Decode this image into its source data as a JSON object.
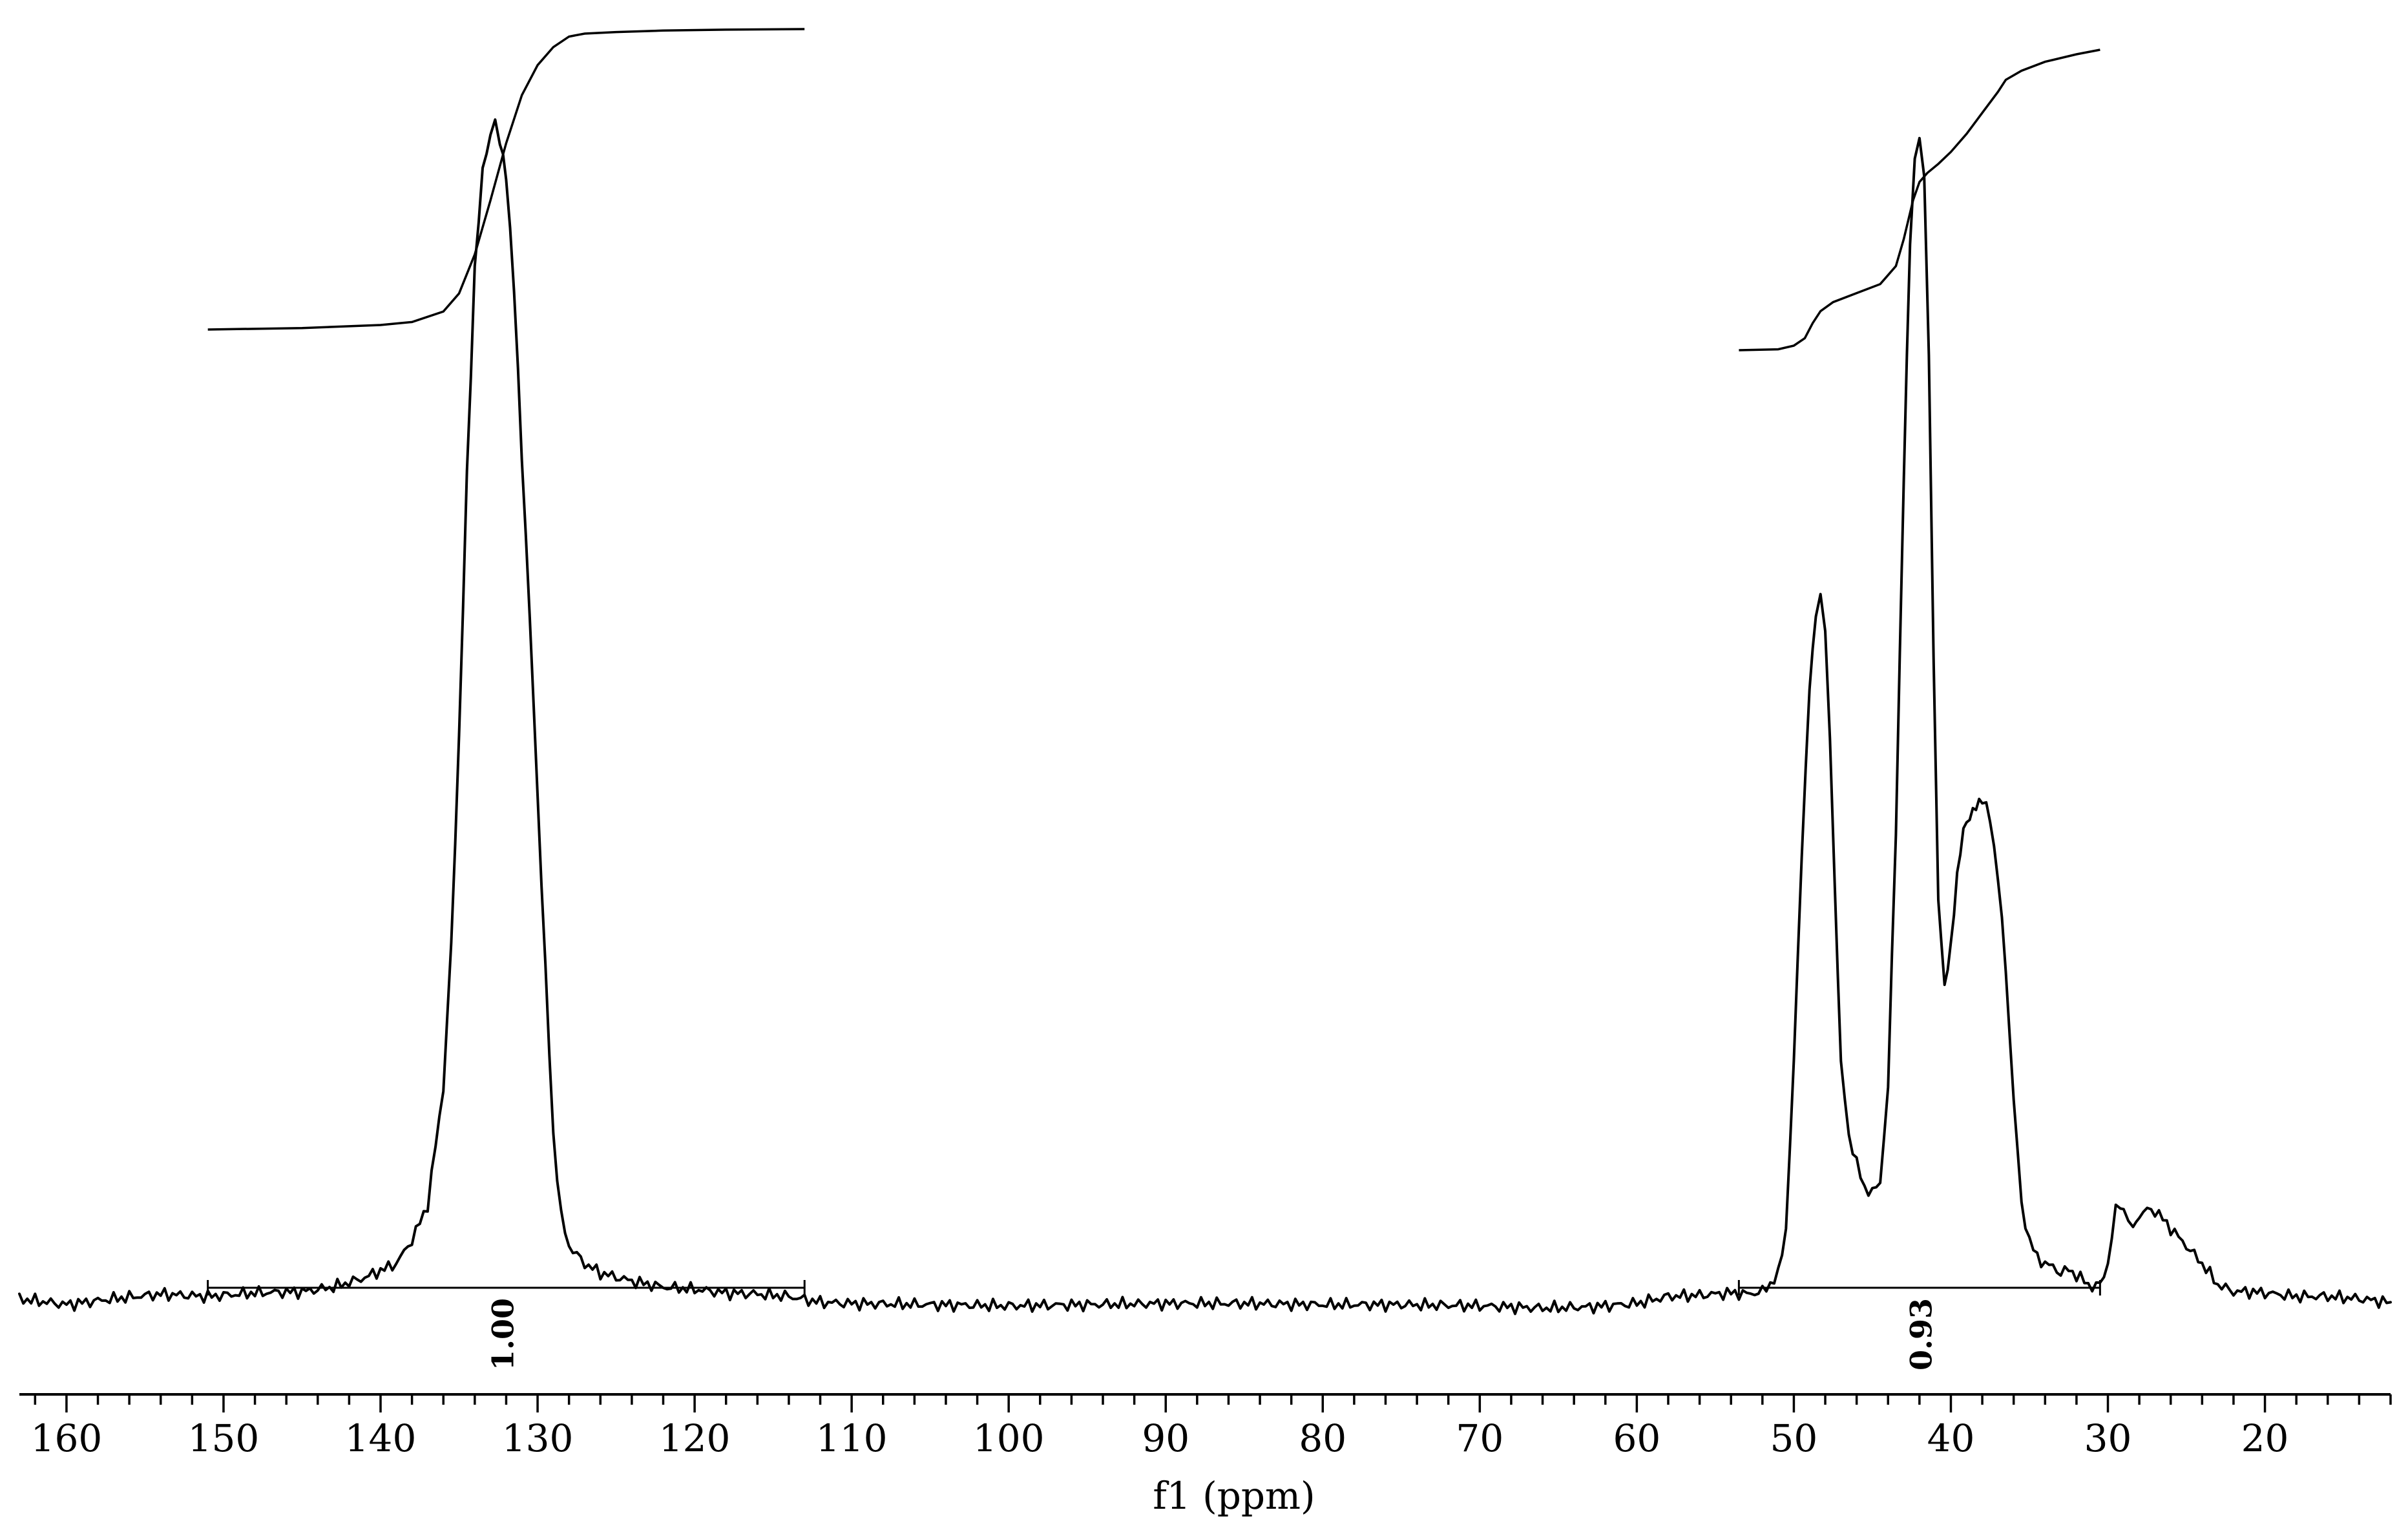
{
  "chart_data": {
    "type": "line",
    "title": "",
    "xlabel": "f1 (ppm)",
    "ylabel": "",
    "x_reversed": true,
    "xlim": [
      163,
      12
    ],
    "ylim": [
      -0.03,
      1.0
    ],
    "grid": false,
    "xticks_major": [
      160,
      150,
      140,
      130,
      120,
      110,
      100,
      90,
      80,
      70,
      60,
      50,
      40,
      30,
      20
    ],
    "xticks_minor_step": 2,
    "series": [
      {
        "x": [
          163,
          160,
          157,
          154,
          151,
          148,
          145,
          143,
          141,
          139,
          138,
          137,
          136,
          135.5,
          135,
          134.5,
          134,
          133.5,
          133,
          132.7,
          132.4,
          132.0,
          131.5,
          131,
          130.5,
          130,
          129.5,
          129,
          128.5,
          128,
          127,
          126,
          124,
          122,
          120,
          118,
          116,
          114,
          112,
          110,
          105,
          100,
          95,
          90,
          85,
          80,
          75,
          70,
          66,
          63,
          60,
          58,
          56,
          55,
          54,
          53,
          52,
          51,
          50.5,
          50,
          49.5,
          49,
          48.6,
          48.3,
          48.0,
          47.7,
          47.4,
          47,
          46.5,
          46,
          45.5,
          45,
          44.5,
          44,
          43.5,
          43,
          42.6,
          42.3,
          42.0,
          41.7,
          41.4,
          41.1,
          40.8,
          40.4,
          40,
          39.6,
          39.2,
          38.8,
          38.4,
          38,
          37.5,
          37,
          36.5,
          36,
          35.5,
          35,
          34.5,
          34,
          33.5,
          33,
          32.5,
          32,
          31.5,
          31,
          30.5,
          30,
          29.5,
          29.2,
          29.0,
          28.7,
          28.4,
          28,
          27.5,
          27,
          26.5,
          26,
          25,
          24,
          23,
          22,
          21,
          20,
          18,
          16,
          14,
          12
        ],
        "y": [
          0.0,
          -0.005,
          0.0,
          0.004,
          0.002,
          0.005,
          0.006,
          0.01,
          0.018,
          0.03,
          0.05,
          0.08,
          0.18,
          0.3,
          0.48,
          0.7,
          0.88,
          0.96,
          0.995,
          1.0,
          0.99,
          0.96,
          0.86,
          0.72,
          0.58,
          0.43,
          0.28,
          0.14,
          0.07,
          0.045,
          0.03,
          0.022,
          0.015,
          0.01,
          0.008,
          0.005,
          0.004,
          0.002,
          -0.003,
          -0.004,
          -0.005,
          -0.006,
          -0.005,
          -0.004,
          -0.004,
          -0.005,
          -0.005,
          -0.006,
          -0.008,
          -0.007,
          -0.004,
          0.002,
          0.003,
          0.004,
          0.005,
          0.004,
          0.006,
          0.02,
          0.06,
          0.2,
          0.38,
          0.52,
          0.58,
          0.6,
          0.57,
          0.48,
          0.35,
          0.2,
          0.14,
          0.115,
          0.095,
          0.09,
          0.1,
          0.18,
          0.4,
          0.7,
          0.9,
          0.97,
          0.99,
          0.96,
          0.8,
          0.55,
          0.34,
          0.265,
          0.3,
          0.36,
          0.4,
          0.41,
          0.42,
          0.425,
          0.41,
          0.36,
          0.28,
          0.17,
          0.08,
          0.05,
          0.035,
          0.03,
          0.027,
          0.022,
          0.025,
          0.02,
          0.015,
          0.01,
          0.012,
          0.03,
          0.075,
          0.082,
          0.075,
          0.066,
          0.065,
          0.07,
          0.076,
          0.075,
          0.068,
          0.06,
          0.045,
          0.03,
          0.012,
          0.006,
          0.006,
          0.005,
          0.002,
          0.002,
          0.0,
          -0.003
        ]
      }
    ],
    "integrals": [
      {
        "label": "1.00",
        "x_start": 151,
        "x_end": 113,
        "curve_x": [
          151,
          145,
          140,
          138,
          136,
          135,
          134,
          133,
          132,
          131,
          130,
          129,
          128,
          127,
          125,
          122,
          118,
          113
        ],
        "curve_y": [
          0.0,
          0.005,
          0.015,
          0.025,
          0.06,
          0.12,
          0.25,
          0.43,
          0.62,
          0.78,
          0.88,
          0.94,
          0.975,
          0.985,
          0.99,
          0.995,
          0.998,
          1.0
        ]
      },
      {
        "label": "0.93",
        "x_start": 53.5,
        "x_end": 30.5,
        "curve_x": [
          53.5,
          51,
          50,
          49.3,
          48.8,
          48.3,
          47.5,
          46,
          44.5,
          43.5,
          43,
          42.4,
          42,
          41.5,
          40.8,
          40,
          39,
          38,
          37,
          36.5,
          35.5,
          34,
          32,
          30.5
        ],
        "curve_y": [
          0.0,
          0.003,
          0.015,
          0.04,
          0.09,
          0.13,
          0.16,
          0.19,
          0.22,
          0.28,
          0.37,
          0.5,
          0.56,
          0.59,
          0.62,
          0.66,
          0.72,
          0.79,
          0.86,
          0.9,
          0.93,
          0.96,
          0.985,
          1.0
        ]
      }
    ]
  }
}
